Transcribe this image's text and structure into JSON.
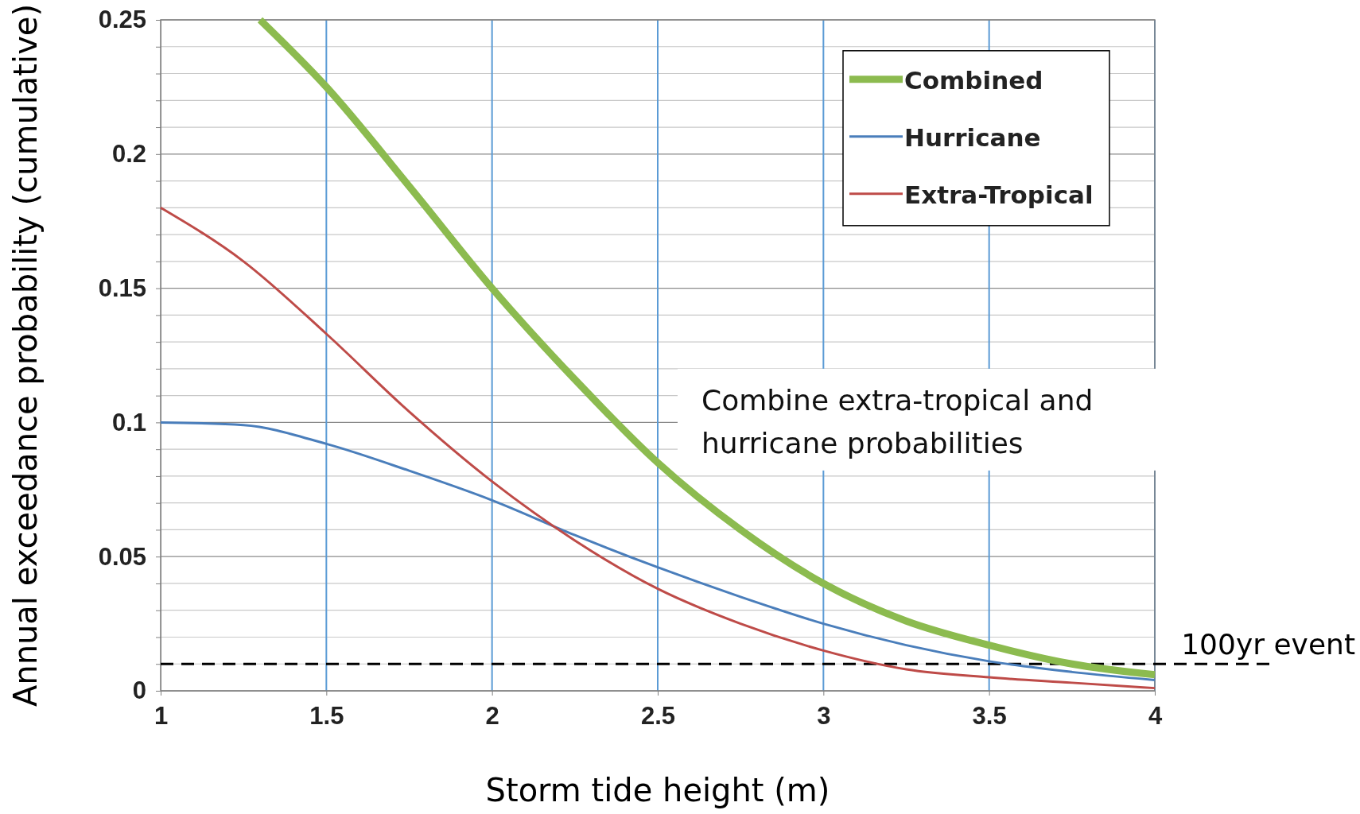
{
  "chart_data": {
    "type": "line",
    "xlabel": "Storm tide height (m)",
    "ylabel": "Annual exceedance probability (cumulative)",
    "xlim": [
      1,
      4
    ],
    "xticks": [
      1,
      1.5,
      2,
      2.5,
      3,
      3.5,
      4
    ],
    "ylim": [
      0,
      0.25
    ],
    "yticks": [
      0,
      {
        "value": 0.01,
        "label": null
      },
      {
        "value": 0.02,
        "label": null
      },
      {
        "value": 0.03,
        "label": null
      },
      {
        "value": 0.04,
        "label": null
      },
      0.05,
      {
        "value": 0.06,
        "label": null
      },
      {
        "value": 0.07,
        "label": null
      },
      {
        "value": 0.08,
        "label": null
      },
      {
        "value": 0.09,
        "label": null
      },
      0.1,
      {
        "value": 0.11,
        "label": null
      },
      {
        "value": 0.12,
        "label": null
      },
      {
        "value": 0.13,
        "label": null
      },
      {
        "value": 0.14,
        "label": null
      },
      0.15,
      {
        "value": 0.16,
        "label": null
      },
      {
        "value": 0.17,
        "label": null
      },
      {
        "value": 0.18,
        "label": null
      },
      {
        "value": 0.19,
        "label": null
      },
      0.2,
      {
        "value": 0.21,
        "label": null
      },
      {
        "value": 0.22,
        "label": null
      },
      {
        "value": 0.23,
        "label": null
      },
      {
        "value": 0.24,
        "label": null
      },
      0.25
    ],
    "grid": true,
    "legend": "top right",
    "series": [
      {
        "name": "Combined",
        "color": "#8cbb4f",
        "x": [
          1.3,
          1.5,
          1.75,
          2,
          2.25,
          2.5,
          2.75,
          3,
          3.25,
          3.5,
          3.75,
          4
        ],
        "values": [
          0.25,
          0.225,
          0.188,
          0.15,
          0.116,
          0.085,
          0.06,
          0.04,
          0.026,
          0.017,
          0.01,
          0.006
        ]
      },
      {
        "name": "Hurricane",
        "color": "#4a7ebb",
        "x": [
          1,
          1.25,
          1.5,
          1.75,
          2,
          2.25,
          2.5,
          2.75,
          3,
          3.25,
          3.5,
          3.75,
          4
        ],
        "values": [
          0.1,
          0.099,
          0.092,
          0.082,
          0.071,
          0.058,
          0.046,
          0.035,
          0.025,
          0.017,
          0.011,
          0.007,
          0.004
        ]
      },
      {
        "name": "Extra-Tropical",
        "color": "#be4b48",
        "x": [
          1,
          1.25,
          1.5,
          1.75,
          2,
          2.25,
          2.5,
          2.75,
          3,
          3.25,
          3.5,
          3.75,
          4
        ],
        "values": [
          0.18,
          0.16,
          0.133,
          0.104,
          0.078,
          0.056,
          0.038,
          0.025,
          0.015,
          0.008,
          0.005,
          0.003,
          0.001
        ]
      }
    ],
    "ref_lines": [
      {
        "axis": "y",
        "value": 0.01,
        "label": "100yr event",
        "color": "#000000",
        "line_style": "dashed"
      }
    ],
    "annotations": [
      "Combine extra-tropical and hurricane probabilities"
    ]
  }
}
